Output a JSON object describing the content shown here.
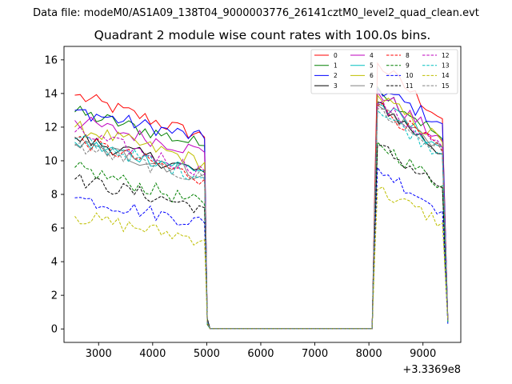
{
  "suptitle": "Data file: modeM0/AS1A09_138T04_9000003776_26141cztM0_level2_quad_clean.evt",
  "chart_data": {
    "type": "line",
    "title": "Quadrant 2 module wise count rates with 100.0s bins.",
    "xlabel": "",
    "ylabel": "",
    "x_offset_label": "+3.3369e8",
    "xlim": [
      2360,
      9700
    ],
    "ylim": [
      -0.8,
      16.8
    ],
    "x_ticks": [
      3000,
      4000,
      5000,
      6000,
      7000,
      8000,
      9000
    ],
    "x_tick_labels": [
      "3000",
      "4000",
      "5000",
      "6000",
      "7000",
      "8000",
      "9000"
    ],
    "y_ticks": [
      0,
      2,
      4,
      6,
      8,
      10,
      12,
      14,
      16
    ],
    "y_tick_labels": [
      "0",
      "2",
      "4",
      "6",
      "8",
      "10",
      "12",
      "14",
      "16"
    ],
    "segments": [
      {
        "start": 2560,
        "end": 4960,
        "step": 100
      },
      {
        "start": 5060,
        "end": 8060,
        "step": 100
      },
      {
        "start": 8160,
        "end": 9360,
        "step": 100
      }
    ],
    "legend": {
      "position": "top-right",
      "columns": 4
    },
    "series": [
      {
        "name": "0",
        "color": "#ff0000",
        "dash": "solid",
        "seg1_start": 13.9,
        "seg1_end": 11.4,
        "seg2_level": 0.02,
        "seg3_start": 15.8,
        "seg3_end": 12.5
      },
      {
        "name": "1",
        "color": "#008000",
        "dash": "solid",
        "seg1_start": 12.9,
        "seg1_end": 10.9,
        "seg2_level": 0.02,
        "seg3_start": 14.4,
        "seg3_end": 11.3
      },
      {
        "name": "2",
        "color": "#0000ff",
        "dash": "solid",
        "seg1_start": 13.0,
        "seg1_end": 11.3,
        "seg2_level": 0.02,
        "seg3_start": 14.3,
        "seg3_end": 12.2
      },
      {
        "name": "3",
        "color": "#000000",
        "dash": "solid",
        "seg1_start": 11.4,
        "seg1_end": 9.3,
        "seg2_level": 0.02,
        "seg3_start": 13.5,
        "seg3_end": 10.4
      },
      {
        "name": "4",
        "color": "#bf00bf",
        "dash": "solid",
        "seg1_start": 12.4,
        "seg1_end": 10.5,
        "seg2_level": 0.02,
        "seg3_start": 14.1,
        "seg3_end": 11.2
      },
      {
        "name": "5",
        "color": "#00bfbf",
        "dash": "solid",
        "seg1_start": 11.1,
        "seg1_end": 9.4,
        "seg2_level": 0.02,
        "seg3_start": 13.4,
        "seg3_end": 10.8
      },
      {
        "name": "6",
        "color": "#bfbf00",
        "dash": "solid",
        "seg1_start": 12.0,
        "seg1_end": 9.9,
        "seg2_level": 0.02,
        "seg3_start": 13.9,
        "seg3_end": 11.1
      },
      {
        "name": "7",
        "color": "#808080",
        "dash": "solid",
        "seg1_start": 11.0,
        "seg1_end": 9.2,
        "seg2_level": 0.02,
        "seg3_start": 13.3,
        "seg3_end": 10.8
      },
      {
        "name": "8",
        "color": "#ff0000",
        "dash": "dashed",
        "seg1_start": 11.3,
        "seg1_end": 8.9,
        "seg2_level": 0.02,
        "seg3_start": 13.3,
        "seg3_end": 10.6
      },
      {
        "name": "9",
        "color": "#008000",
        "dash": "dashed",
        "seg1_start": 9.6,
        "seg1_end": 7.4,
        "seg2_level": 0.02,
        "seg3_start": 11.1,
        "seg3_end": 8.5
      },
      {
        "name": "10",
        "color": "#0000ff",
        "dash": "dashed",
        "seg1_start": 7.8,
        "seg1_end": 6.3,
        "seg2_level": 0.02,
        "seg3_start": 9.6,
        "seg3_end": 7.0
      },
      {
        "name": "11",
        "color": "#000000",
        "dash": "dashed",
        "seg1_start": 8.9,
        "seg1_end": 7.2,
        "seg2_level": 0.02,
        "seg3_start": 10.9,
        "seg3_end": 8.4
      },
      {
        "name": "12",
        "color": "#bf00bf",
        "dash": "dashed",
        "seg1_start": 11.7,
        "seg1_end": 9.4,
        "seg2_level": 0.02,
        "seg3_start": 13.4,
        "seg3_end": 10.8
      },
      {
        "name": "13",
        "color": "#00bfbf",
        "dash": "dashed",
        "seg1_start": 11.3,
        "seg1_end": 9.0,
        "seg2_level": 0.02,
        "seg3_start": 13.0,
        "seg3_end": 10.4
      },
      {
        "name": "14",
        "color": "#bfbf00",
        "dash": "dashed",
        "seg1_start": 6.7,
        "seg1_end": 5.3,
        "seg2_level": 0.02,
        "seg3_start": 8.3,
        "seg3_end": 6.3
      },
      {
        "name": "15",
        "color": "#808080",
        "dash": "dashed",
        "seg1_start": 10.9,
        "seg1_end": 8.9,
        "seg2_level": 0.02,
        "seg3_start": 13.1,
        "seg3_end": 10.5
      }
    ]
  }
}
